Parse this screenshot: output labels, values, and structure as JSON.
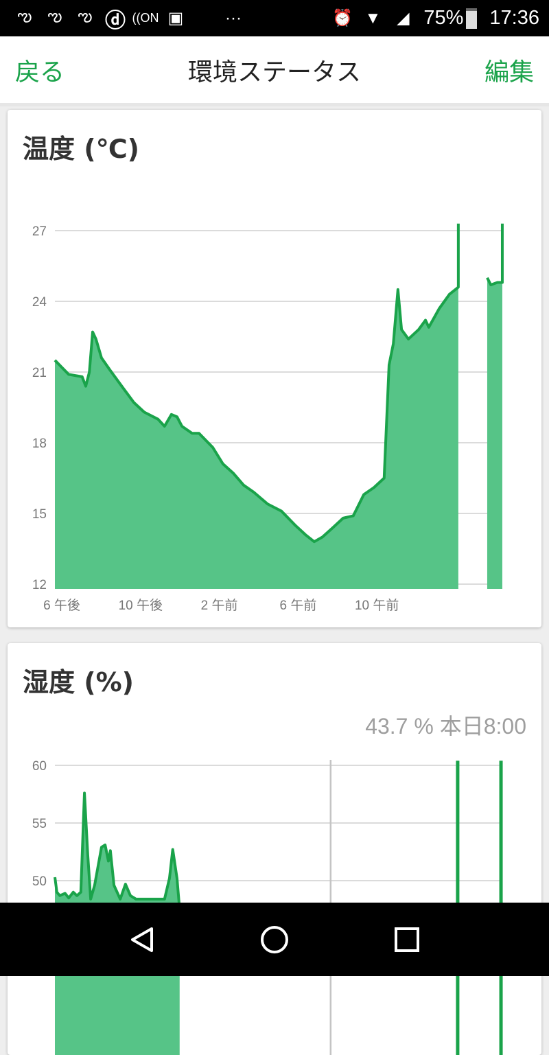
{
  "status_bar": {
    "icons": [
      "bird-notification-icon",
      "bird-notification-icon",
      "bird-notification-icon",
      "d-app-icon",
      "nfc-on-icon",
      "image-icon",
      "more-dots-icon",
      "alarm-icon",
      "wifi-icon",
      "cell-signal-icon",
      "battery-icon"
    ],
    "battery": "75%",
    "time": "17:36"
  },
  "app_bar": {
    "back": "戻る",
    "title": "環境ステータス",
    "edit": "編集"
  },
  "accent": "#1aa34a",
  "temperature": {
    "title": "温度 (℃)"
  },
  "humidity": {
    "title": "湿度 (%)",
    "readout": "43.7 % 本日8:00"
  },
  "chart_data": [
    {
      "type": "area",
      "title": "温度 (℃)",
      "yticks": [
        12,
        15,
        18,
        21,
        24,
        27
      ],
      "ylim": [
        12,
        27
      ],
      "xticks": [
        {
          "t": "18:00",
          "label": "6 午後"
        },
        {
          "t": "22:00",
          "label": "10 午後"
        },
        {
          "t": "02:00",
          "label": "2 午前"
        },
        {
          "t": "06:00",
          "label": "6 午前"
        },
        {
          "t": "10:00",
          "label": "10 午前"
        }
      ],
      "grid": true,
      "color": "#1aa34a",
      "segments": [
        [
          [
            "18:00",
            21.5
          ],
          [
            "18:21",
            21.2
          ],
          [
            "18:42",
            20.9
          ],
          [
            "19:23",
            20.8
          ],
          [
            "19:34",
            20.4
          ],
          [
            "19:45",
            21.0
          ],
          [
            "19:55",
            22.7
          ],
          [
            "20:05",
            22.4
          ],
          [
            "20:22",
            21.6
          ],
          [
            "20:47",
            21.1
          ],
          [
            "21:29",
            20.3
          ],
          [
            "22:01",
            19.7
          ],
          [
            "22:32",
            19.3
          ],
          [
            "23:14",
            19.0
          ],
          [
            "23:34",
            18.7
          ],
          [
            "23:55",
            19.2
          ],
          [
            "00:12",
            19.1
          ],
          [
            "00:27",
            18.7
          ],
          [
            "00:58",
            18.4
          ],
          [
            "01:19",
            18.4
          ],
          [
            "02:01",
            17.8
          ],
          [
            "02:32",
            17.1
          ],
          [
            "03:04",
            16.7
          ],
          [
            "03:35",
            16.2
          ],
          [
            "04:06",
            15.9
          ],
          [
            "04:48",
            15.4
          ],
          [
            "05:30",
            15.1
          ],
          [
            "06:12",
            14.5
          ],
          [
            "06:43",
            14.1
          ],
          [
            "07:10",
            13.8
          ],
          [
            "07:35",
            14.0
          ],
          [
            "08:07",
            14.4
          ],
          [
            "08:38",
            14.8
          ],
          [
            "09:09",
            14.9
          ],
          [
            "09:41",
            15.8
          ],
          [
            "10:12",
            16.1
          ],
          [
            "10:43",
            16.5
          ],
          [
            "10:58",
            21.3
          ],
          [
            "11:11",
            22.2
          ],
          [
            "11:25",
            24.5
          ],
          [
            "11:36",
            22.8
          ],
          [
            "11:57",
            22.4
          ],
          [
            "12:28",
            22.8
          ],
          [
            "12:49",
            23.2
          ],
          [
            "12:59",
            22.9
          ],
          [
            "13:31",
            23.7
          ],
          [
            "14:02",
            24.3
          ],
          [
            "14:29",
            24.6
          ],
          [
            "14:29",
            27.3
          ]
        ],
        [
          [
            "15:57",
            25.0
          ],
          [
            "16:08",
            24.7
          ],
          [
            "16:28",
            24.8
          ],
          [
            "16:43",
            24.8
          ],
          [
            "16:43",
            27.3
          ]
        ]
      ]
    },
    {
      "type": "area",
      "title": "湿度 (%)",
      "yticks": [
        50,
        55,
        60
      ],
      "ylim": [
        30,
        60
      ],
      "grid": true,
      "color": "#1aa34a",
      "cursor": "08:00",
      "segments": [
        [
          [
            "18:00",
            50.3
          ],
          [
            "18:06",
            49.0
          ],
          [
            "18:15",
            48.7
          ],
          [
            "18:31",
            48.9
          ],
          [
            "18:42",
            48.5
          ],
          [
            "18:56",
            49.0
          ],
          [
            "19:07",
            48.7
          ],
          [
            "19:19",
            49.0
          ],
          [
            "19:30",
            57.6
          ],
          [
            "19:40",
            52.3
          ],
          [
            "19:49",
            48.4
          ],
          [
            "20:01",
            49.6
          ],
          [
            "20:22",
            52.9
          ],
          [
            "20:33",
            53.1
          ],
          [
            "20:43",
            51.7
          ],
          [
            "20:49",
            52.6
          ],
          [
            "21:00",
            49.6
          ],
          [
            "21:19",
            48.4
          ],
          [
            "21:35",
            49.7
          ],
          [
            "21:50",
            48.7
          ],
          [
            "22:07",
            48.4
          ],
          [
            "23:34",
            48.4
          ],
          [
            "23:49",
            50.2
          ],
          [
            "23:59",
            52.7
          ],
          [
            "00:12",
            50.2
          ],
          [
            "00:20",
            47.5
          ]
        ]
      ],
      "spikes": [
        [
          "14:27",
          60.4
        ],
        [
          "16:39",
          60.4
        ]
      ]
    }
  ]
}
